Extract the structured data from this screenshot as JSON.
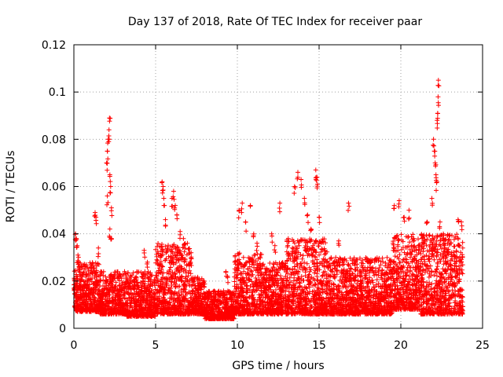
{
  "chart_data": {
    "type": "scatter",
    "title": "Day 137 of 2018, Rate Of TEC Index for receiver paar",
    "xlabel": "GPS time / hours",
    "ylabel": "ROTI / TECUs",
    "xlim": [
      0,
      25
    ],
    "ylim": [
      0,
      0.12
    ],
    "x_ticks": [
      0,
      5,
      10,
      15,
      20,
      25
    ],
    "x_tick_labels": [
      "0",
      "5",
      "10",
      "15",
      "20",
      "25"
    ],
    "y_ticks": [
      0,
      0.02,
      0.04,
      0.06,
      0.08,
      0.1,
      0.12
    ],
    "y_tick_labels": [
      "0",
      "0.02",
      "0.04",
      "0.06",
      "0.08",
      "0.1",
      "0.12"
    ],
    "grid": true,
    "marker": "+",
    "color": "#ff0000",
    "series": [
      {
        "name": "ROTI",
        "description_points": [
          [
            0.1,
            0.04
          ],
          [
            0.15,
            0.038
          ],
          [
            0.2,
            0.035
          ],
          [
            0.25,
            0.031
          ],
          [
            0.3,
            0.028
          ],
          [
            1.3,
            0.049
          ],
          [
            1.35,
            0.047
          ],
          [
            1.5,
            0.034
          ],
          [
            2.0,
            0.07
          ],
          [
            2.05,
            0.075
          ],
          [
            2.1,
            0.08
          ],
          [
            2.15,
            0.084
          ],
          [
            2.18,
            0.089
          ],
          [
            2.2,
            0.065
          ],
          [
            2.25,
            0.06
          ],
          [
            2.3,
            0.051
          ],
          [
            2.05,
            0.056
          ],
          [
            2.2,
            0.042
          ],
          [
            2.3,
            0.038
          ],
          [
            4.3,
            0.033
          ],
          [
            4.5,
            0.028
          ],
          [
            5.4,
            0.062
          ],
          [
            5.45,
            0.06
          ],
          [
            5.5,
            0.055
          ],
          [
            5.6,
            0.046
          ],
          [
            6.0,
            0.055
          ],
          [
            6.1,
            0.058
          ],
          [
            6.2,
            0.052
          ],
          [
            6.3,
            0.048
          ],
          [
            6.5,
            0.041
          ],
          [
            6.7,
            0.038
          ],
          [
            9.3,
            0.024
          ],
          [
            9.4,
            0.022
          ],
          [
            10.1,
            0.05
          ],
          [
            10.3,
            0.053
          ],
          [
            10.5,
            0.045
          ],
          [
            10.8,
            0.052
          ],
          [
            11.0,
            0.04
          ],
          [
            11.2,
            0.036
          ],
          [
            12.1,
            0.04
          ],
          [
            12.3,
            0.035
          ],
          [
            12.6,
            0.053
          ],
          [
            13.5,
            0.06
          ],
          [
            13.7,
            0.066
          ],
          [
            13.9,
            0.063
          ],
          [
            14.1,
            0.055
          ],
          [
            14.3,
            0.048
          ],
          [
            14.5,
            0.042
          ],
          [
            14.8,
            0.067
          ],
          [
            14.85,
            0.064
          ],
          [
            14.9,
            0.061
          ],
          [
            15.0,
            0.047
          ],
          [
            16.2,
            0.037
          ],
          [
            16.8,
            0.053
          ],
          [
            19.6,
            0.052
          ],
          [
            19.9,
            0.054
          ],
          [
            20.2,
            0.047
          ],
          [
            20.5,
            0.05
          ],
          [
            20.8,
            0.038
          ],
          [
            21.6,
            0.045
          ],
          [
            21.9,
            0.055
          ],
          [
            22.0,
            0.08
          ],
          [
            22.05,
            0.075
          ],
          [
            22.1,
            0.07
          ],
          [
            22.15,
            0.065
          ],
          [
            22.2,
            0.062
          ],
          [
            22.22,
            0.088
          ],
          [
            22.25,
            0.091
          ],
          [
            22.28,
            0.098
          ],
          [
            22.3,
            0.105
          ],
          [
            22.4,
            0.045
          ],
          [
            22.6,
            0.04
          ],
          [
            23.5,
            0.046
          ],
          [
            23.7,
            0.045
          ]
        ]
      }
    ],
    "baseline_segments": [
      {
        "x_start": 0.0,
        "x_end": 1.6,
        "y_low": 0.007,
        "y_high": 0.028
      },
      {
        "x_start": 1.6,
        "x_end": 3.2,
        "y_low": 0.006,
        "y_high": 0.024
      },
      {
        "x_start": 3.2,
        "x_end": 5.0,
        "y_low": 0.005,
        "y_high": 0.024
      },
      {
        "x_start": 5.0,
        "x_end": 7.2,
        "y_low": 0.006,
        "y_high": 0.036
      },
      {
        "x_start": 7.2,
        "x_end": 8.0,
        "y_low": 0.006,
        "y_high": 0.022
      },
      {
        "x_start": 8.0,
        "x_end": 9.8,
        "y_low": 0.004,
        "y_high": 0.016
      },
      {
        "x_start": 9.8,
        "x_end": 11.5,
        "y_low": 0.006,
        "y_high": 0.032
      },
      {
        "x_start": 11.5,
        "x_end": 13.0,
        "y_low": 0.006,
        "y_high": 0.028
      },
      {
        "x_start": 13.0,
        "x_end": 15.5,
        "y_low": 0.006,
        "y_high": 0.038
      },
      {
        "x_start": 15.5,
        "x_end": 17.5,
        "y_low": 0.006,
        "y_high": 0.03
      },
      {
        "x_start": 17.5,
        "x_end": 19.5,
        "y_low": 0.006,
        "y_high": 0.03
      },
      {
        "x_start": 19.5,
        "x_end": 21.2,
        "y_low": 0.008,
        "y_high": 0.04
      },
      {
        "x_start": 21.2,
        "x_end": 23.8,
        "y_low": 0.006,
        "y_high": 0.04
      }
    ]
  }
}
